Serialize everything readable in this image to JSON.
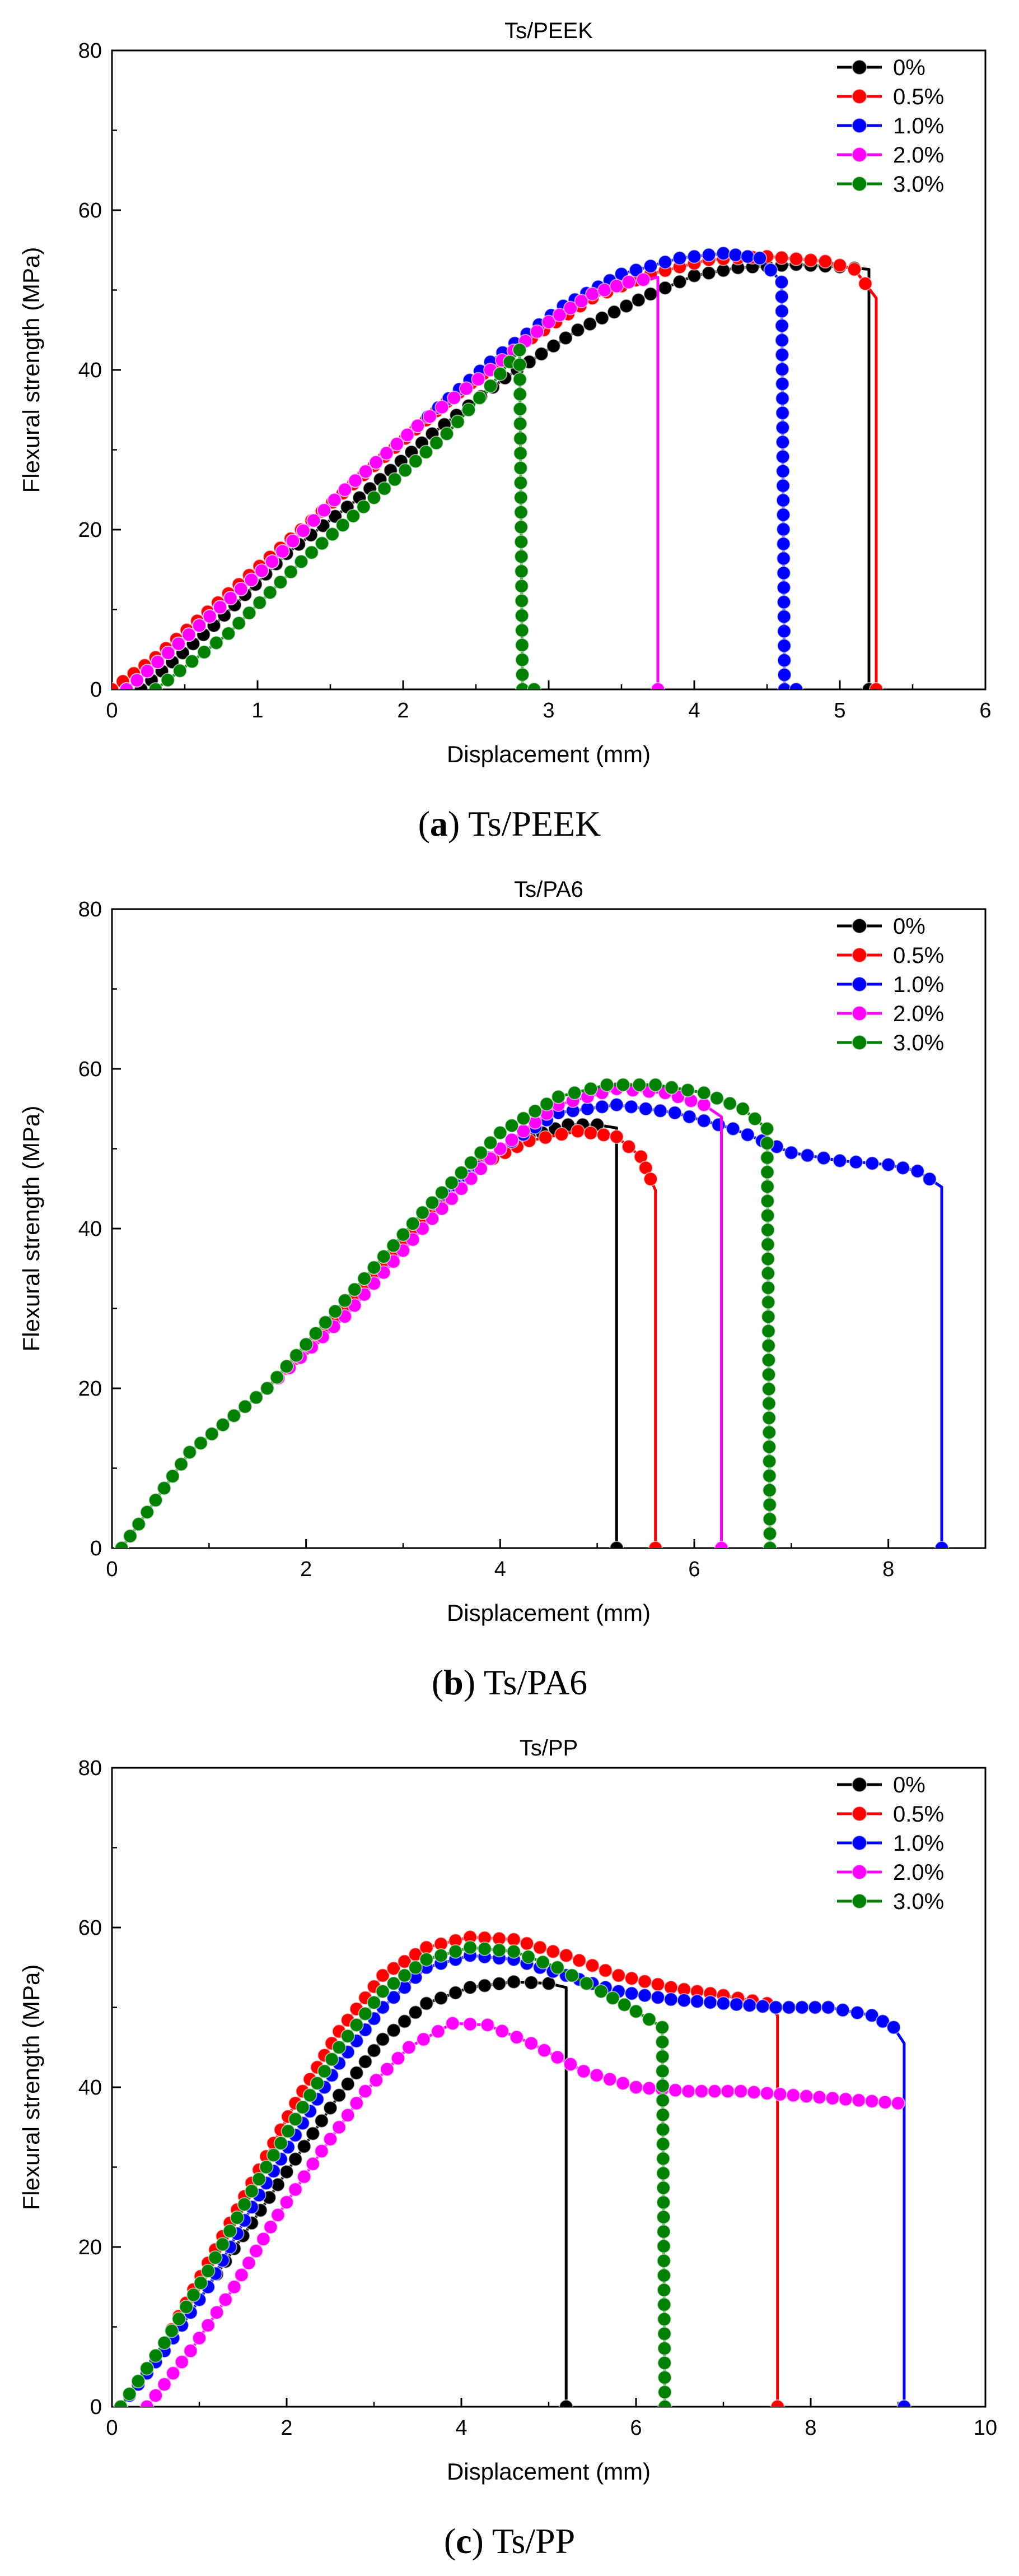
{
  "chart_data": [
    {
      "type": "line",
      "title": "Ts/PEEK",
      "caption_letter": "a",
      "caption_text": "Ts/PEEK",
      "xlabel": "Displacement (mm)",
      "ylabel": "Flexural strength (MPa)",
      "xlim": [
        0,
        6
      ],
      "ylim": [
        0,
        80
      ],
      "xticks": [
        0,
        1,
        2,
        3,
        4,
        5,
        6
      ],
      "yticks": [
        0,
        20,
        40,
        60,
        80
      ],
      "legend_position": "top-right",
      "series": [
        {
          "name": "0%",
          "color": "#000000",
          "x": [
            0.2,
            0.7,
            1.2,
            1.7,
            2.2,
            2.7,
            3.2,
            3.7,
            4.0,
            4.3,
            4.7,
            5.0,
            5.2,
            5.2
          ],
          "y": [
            0,
            8,
            17,
            24,
            32,
            39,
            45,
            49.5,
            51.8,
            52.8,
            53.2,
            52.9,
            52.6,
            0
          ]
        },
        {
          "name": "0.5%",
          "color": "#ff0000",
          "x": [
            0.0,
            0.3,
            0.8,
            1.3,
            1.8,
            2.3,
            2.8,
            3.3,
            3.7,
            4.1,
            4.5,
            4.9,
            5.1,
            5.25,
            5.25
          ],
          "y": [
            0,
            4,
            12,
            20,
            28,
            36,
            43,
            49,
            52,
            53.8,
            54.2,
            53.6,
            52.6,
            49,
            0
          ]
        },
        {
          "name": "1.0%",
          "color": "#0000ff",
          "x": [
            0.1,
            0.6,
            1.1,
            1.6,
            2.1,
            2.6,
            3.1,
            3.5,
            3.9,
            4.2,
            4.45,
            4.6,
            4.62,
            4.7
          ],
          "y": [
            0,
            8,
            16,
            25,
            33,
            41,
            48,
            52,
            54,
            54.6,
            54,
            51,
            0,
            0
          ]
        },
        {
          "name": "2.0%",
          "color": "#ff00ff",
          "x": [
            0.1,
            0.6,
            1.1,
            1.6,
            2.1,
            2.6,
            3.0,
            3.3,
            3.55,
            3.75,
            3.75
          ],
          "y": [
            0,
            8,
            16,
            25,
            33,
            40,
            46,
            49.5,
            51,
            51.6,
            0
          ]
        },
        {
          "name": "3.0%",
          "color": "#008000",
          "x": [
            0.3,
            0.8,
            1.3,
            1.8,
            2.3,
            2.6,
            2.8,
            2.82,
            2.9
          ],
          "y": [
            0,
            7,
            16,
            24,
            32,
            38,
            42.5,
            0,
            0
          ]
        }
      ]
    },
    {
      "type": "line",
      "title": "Ts/PA6",
      "caption_letter": "b",
      "caption_text": "Ts/PA6",
      "xlabel": "Displacement (mm)",
      "ylabel": "Flexural strength (MPa)",
      "xlim": [
        0,
        9
      ],
      "ylim": [
        0,
        80
      ],
      "xticks": [
        0,
        2,
        4,
        6,
        8
      ],
      "yticks": [
        0,
        20,
        40,
        60,
        80
      ],
      "legend_position": "top-right",
      "series": [
        {
          "name": "0%",
          "color": "#000000",
          "x": [
            0.1,
            0.8,
            1.6,
            2.4,
            3.2,
            3.8,
            4.3,
            4.7,
            5.0,
            5.2,
            5.2
          ],
          "y": [
            0,
            12,
            20,
            31,
            42,
            48,
            51.5,
            53,
            53,
            52.6,
            0
          ]
        },
        {
          "name": "0.5%",
          "color": "#ff0000",
          "x": [
            0.1,
            0.8,
            1.6,
            2.4,
            3.2,
            3.8,
            4.3,
            4.8,
            5.2,
            5.45,
            5.6,
            5.6
          ],
          "y": [
            0,
            12,
            20,
            30,
            41,
            48,
            51,
            52.2,
            51.5,
            49,
            44.8,
            0
          ]
        },
        {
          "name": "1.0%",
          "color": "#0000ff",
          "x": [
            0.1,
            0.8,
            1.6,
            2.4,
            3.2,
            4.0,
            4.6,
            5.2,
            5.8,
            6.4,
            7.0,
            7.5,
            8.0,
            8.3,
            8.55,
            8.55
          ],
          "y": [
            0,
            12,
            20,
            31,
            42,
            50,
            54.5,
            55.5,
            54.5,
            52.5,
            49.5,
            48.5,
            48,
            47.2,
            45.2,
            0
          ]
        },
        {
          "name": "2.0%",
          "color": "#ff00ff",
          "x": [
            0.1,
            0.8,
            1.6,
            2.4,
            3.2,
            4.0,
            4.6,
            5.2,
            5.7,
            6.1,
            6.28,
            6.28
          ],
          "y": [
            0,
            12,
            20,
            29,
            40,
            50,
            55.5,
            57.5,
            57,
            55.5,
            54,
            0
          ]
        },
        {
          "name": "3.0%",
          "color": "#008000",
          "x": [
            0.1,
            0.8,
            1.6,
            2.4,
            3.2,
            4.0,
            4.6,
            5.1,
            5.6,
            6.1,
            6.5,
            6.75,
            6.78
          ],
          "y": [
            0,
            12,
            20,
            31,
            42,
            52,
            56.5,
            58,
            58,
            57,
            55,
            52.5,
            0
          ]
        }
      ]
    },
    {
      "type": "line",
      "title": "Ts/PP",
      "caption_letter": "c",
      "caption_text": "Ts/PP",
      "xlabel": "Displacement (mm)",
      "ylabel": "Flexural strength (MPa)",
      "xlim": [
        0,
        10
      ],
      "ylim": [
        0,
        80
      ],
      "xticks": [
        0,
        2,
        4,
        6,
        8,
        10
      ],
      "yticks": [
        0,
        20,
        40,
        60,
        80
      ],
      "legend_position": "top-right",
      "series": [
        {
          "name": "0%",
          "color": "#000000",
          "x": [
            0.1,
            0.6,
            1.1,
            1.6,
            2.1,
            2.6,
            3.1,
            3.6,
            4.1,
            4.6,
            5.0,
            5.2,
            5.2
          ],
          "y": [
            0,
            7,
            15,
            23,
            31,
            39,
            46,
            50.5,
            52.5,
            53.2,
            53,
            52.5,
            0
          ]
        },
        {
          "name": "0.5%",
          "color": "#ff0000",
          "x": [
            0.1,
            0.6,
            1.1,
            1.6,
            2.1,
            2.6,
            3.1,
            3.6,
            4.1,
            4.6,
            5.2,
            5.8,
            6.4,
            7.0,
            7.5,
            7.62,
            7.62
          ],
          "y": [
            0,
            8,
            18,
            28,
            38,
            47,
            54,
            57.5,
            58.8,
            58.5,
            56.5,
            54,
            52.5,
            51.5,
            50.5,
            49,
            0
          ]
        },
        {
          "name": "1.0%",
          "color": "#0000ff",
          "x": [
            0.1,
            0.6,
            1.1,
            1.6,
            2.1,
            2.6,
            3.1,
            3.6,
            4.1,
            4.6,
            5.2,
            5.8,
            6.4,
            7.0,
            7.6,
            8.2,
            8.7,
            8.95,
            9.07,
            9.07
          ],
          "y": [
            0,
            7,
            15,
            25,
            34,
            43,
            50,
            55,
            56.5,
            56,
            54,
            52,
            51,
            50.5,
            50,
            50,
            49,
            47.5,
            45.5,
            0
          ]
        },
        {
          "name": "2.0%",
          "color": "#ff00ff",
          "x": [
            0.4,
            0.9,
            1.4,
            1.9,
            2.4,
            2.9,
            3.4,
            3.9,
            4.3,
            4.8,
            5.4,
            6.0,
            6.6,
            7.2,
            7.8,
            8.4,
            9.0
          ],
          "y": [
            0,
            7,
            15,
            24,
            32,
            39.5,
            45,
            48,
            47.8,
            45.5,
            42,
            40,
            39.5,
            39.5,
            39,
            38.5,
            38
          ]
        },
        {
          "name": "3.0%",
          "color": "#008000",
          "x": [
            0.1,
            0.6,
            1.1,
            1.6,
            2.1,
            2.6,
            3.1,
            3.6,
            4.1,
            4.6,
            5.1,
            5.6,
            6.0,
            6.3,
            6.33
          ],
          "y": [
            0,
            8,
            17,
            27,
            36,
            45,
            52,
            56,
            57.5,
            57,
            55,
            52,
            49.5,
            47.5,
            0
          ]
        }
      ]
    }
  ]
}
